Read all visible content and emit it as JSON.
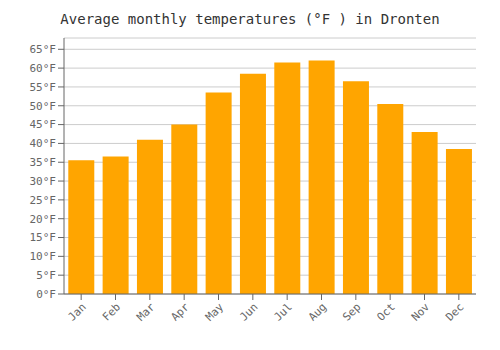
{
  "chart_data": {
    "type": "bar",
    "title": "Average monthly temperatures (°F ) in Dronten",
    "categories": [
      "Jan",
      "Feb",
      "Mar",
      "Apr",
      "May",
      "Jun",
      "Jul",
      "Aug",
      "Sep",
      "Oct",
      "Nov",
      "Dec"
    ],
    "values": [
      35.5,
      36.5,
      41.0,
      45.0,
      53.5,
      58.5,
      61.5,
      62.0,
      56.5,
      50.5,
      43.0,
      38.5
    ],
    "color": "#FFA500",
    "ylim": [
      0,
      68
    ],
    "yticks": [
      {
        "value": 0,
        "label": "0°F"
      },
      {
        "value": 5,
        "label": "5°F"
      },
      {
        "value": 10,
        "label": "10°F"
      },
      {
        "value": 15,
        "label": "15°F"
      },
      {
        "value": 20,
        "label": "20°F"
      },
      {
        "value": 25,
        "label": "25°F"
      },
      {
        "value": 30,
        "label": "30°F"
      },
      {
        "value": 35,
        "label": "35°F"
      },
      {
        "value": 40,
        "label": "40°F"
      },
      {
        "value": 45,
        "label": "45°F"
      },
      {
        "value": 50,
        "label": "50°F"
      },
      {
        "value": 55,
        "label": "55°F"
      },
      {
        "value": 60,
        "label": "60°F"
      },
      {
        "value": 65,
        "label": "65°F"
      }
    ],
    "grid": true
  }
}
